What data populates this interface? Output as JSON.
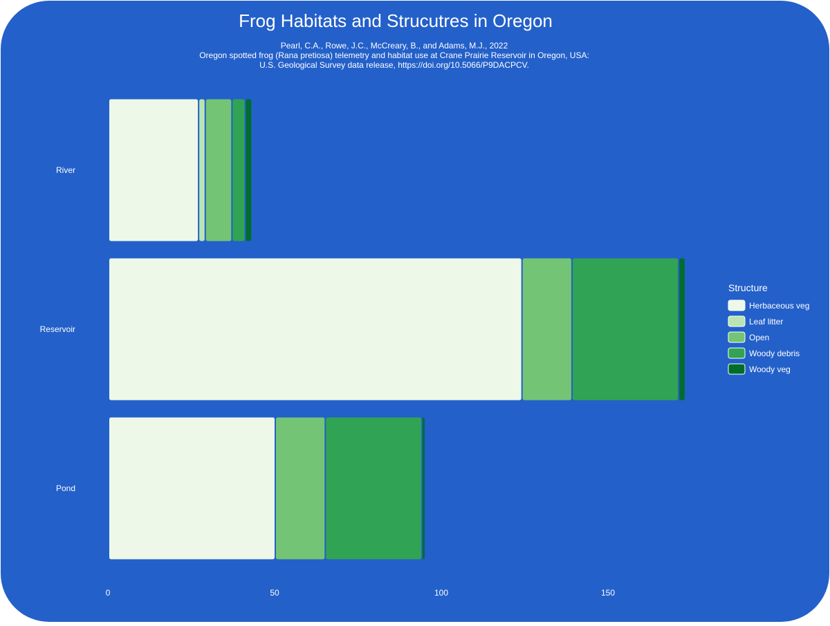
{
  "chart_data": {
    "type": "bar",
    "orientation": "horizontal",
    "stacked": true,
    "title": "Frog Habitats and Strucutres in Oregon",
    "subtitle_lines": [
      "Pearl, C.A., Rowe, J.C., McCreary, B., and Adams, M.J., 2022",
      "Oregon spotted frog (Rana pretiosa) telemetry and habitat use at Crane Prairie Reservoir in Oregon, USA:",
      "U.S. Geological Survey data release, https://doi.org/10.5066/P9DACPCV."
    ],
    "categories": [
      "River",
      "Reservoir",
      "Pond"
    ],
    "series": [
      {
        "name": "Herbaceous veg",
        "color": "#edf8e9",
        "values": [
          27,
          124,
          50
        ]
      },
      {
        "name": "Leaf litter",
        "color": "#bae4b3",
        "values": [
          2,
          0,
          0
        ]
      },
      {
        "name": "Open",
        "color": "#74c476",
        "values": [
          8,
          15,
          15
        ]
      },
      {
        "name": "Woody debris",
        "color": "#31a354",
        "values": [
          4,
          32,
          29
        ]
      },
      {
        "name": "Woody veg",
        "color": "#006d2c",
        "values": [
          2,
          2,
          1
        ]
      }
    ],
    "x_ticks": [
      "0",
      "50",
      "100",
      "150"
    ],
    "xlim": [
      0,
      180
    ],
    "xlabel": "",
    "ylabel": "",
    "legend_title": "Structure",
    "legend_position": "right",
    "grid": false,
    "background_color": "#2360c9",
    "text_color": "#ffffff"
  }
}
